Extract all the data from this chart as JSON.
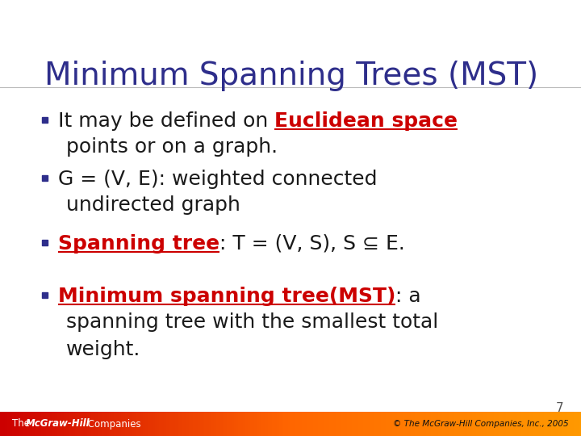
{
  "title": "Minimum Spanning Trees (MST)",
  "title_color": "#2E2E8B",
  "title_fontsize": 28,
  "background_color": "#FFFFFF",
  "bullet_color": "#2E2E8B",
  "body_fontsize": 18,
  "body_font": "DejaVu Sans",
  "title_font": "DejaVu Sans",
  "bullet1_line1_plain": "It may be defined on ",
  "bullet1_line1_red": "Euclidean space",
  "bullet1_line2": "points or on a graph.",
  "bullet2_line1": "G = (V, E): weighted connected",
  "bullet2_line2": "undirected graph",
  "bullet3_line1_red": "Spanning tree",
  "bullet3_line1_plain": ": T = (V, S), S ⊆ E.",
  "bullet4_line1_red": "Minimum spanning tree(MST)",
  "bullet4_line1_plain": ": a",
  "bullet4_line2": "spanning tree with the smallest total",
  "bullet4_line3": "weight.",
  "footer_left_text": "The McGraw-Hill Companies",
  "footer_right_text": "© The McGraw-Hill Companies, Inc., 2005",
  "footer_red": "#CC0000",
  "footer_yellow": "#FF8C00",
  "footer_text_color_left": "#FFFFFF",
  "footer_text_color_right": "#111111",
  "red_text_color": "#CC0000",
  "black_text_color": "#1A1A1A",
  "page_number": "7"
}
